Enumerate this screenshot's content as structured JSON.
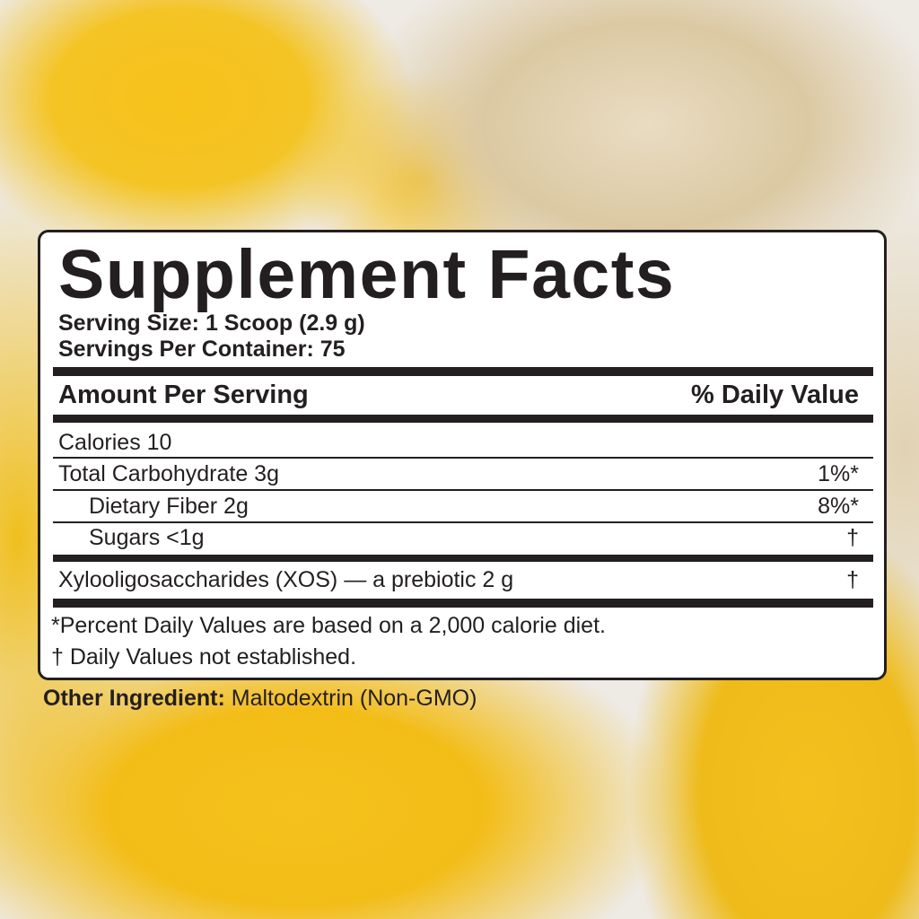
{
  "label": {
    "title": "Supplement Facts",
    "serving_size": "Serving Size: 1 Scoop (2.9 g)",
    "servings_per_container": "Servings Per Container: 75",
    "header_left": "Amount Per Serving",
    "header_right": "% Daily Value",
    "rows": [
      {
        "name": "Calories 10",
        "dv": ""
      },
      {
        "name": "Total Carbohydrate 3g",
        "dv": "1%*"
      },
      {
        "name": "Dietary Fiber 2g",
        "dv": "8%*"
      },
      {
        "name": "Sugars <1g",
        "dv": "†"
      },
      {
        "name": "Xylooligosaccharides (XOS) — a prebiotic 2 g",
        "dv": "†"
      }
    ],
    "footnote_1": "*Percent Daily Values are based on a 2,000 calorie diet.",
    "footnote_2": "† Daily Values not established."
  },
  "other_ingredient": {
    "label": "Other Ingredient:",
    "value": "Maltodextrin (Non-GMO)"
  }
}
